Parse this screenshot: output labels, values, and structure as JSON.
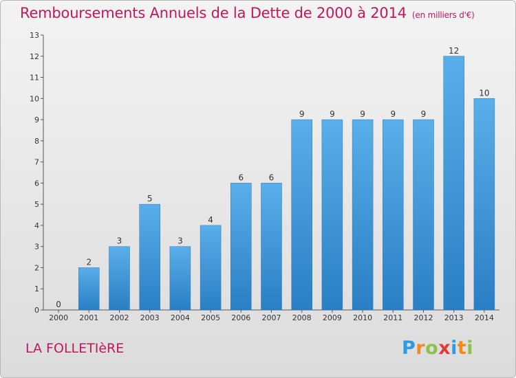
{
  "title": "Remboursements Annuels de la Dette de 2000 à 2014",
  "unit_note": "(en milliers d'€)",
  "location": "LA FOLLETIèRE",
  "logo_text": "Proxiti",
  "colors": {
    "bar": "#3d97dc",
    "title": "#c2185b",
    "axis": "#555555"
  },
  "chart_data": {
    "type": "bar",
    "title": "Remboursements Annuels de la Dette de 2000 à 2014",
    "xlabel": "",
    "ylabel": "",
    "ylim": [
      0,
      13
    ],
    "yticks": [
      0,
      1,
      2,
      3,
      4,
      5,
      6,
      7,
      8,
      9,
      10,
      11,
      12,
      13
    ],
    "grid": false,
    "categories": [
      "2000",
      "2001",
      "2002",
      "2003",
      "2004",
      "2005",
      "2006",
      "2007",
      "2008",
      "2009",
      "2010",
      "2011",
      "2012",
      "2013",
      "2014"
    ],
    "values": [
      0,
      2,
      3,
      5,
      3,
      4,
      6,
      6,
      9,
      9,
      9,
      9,
      9,
      12,
      10
    ]
  }
}
